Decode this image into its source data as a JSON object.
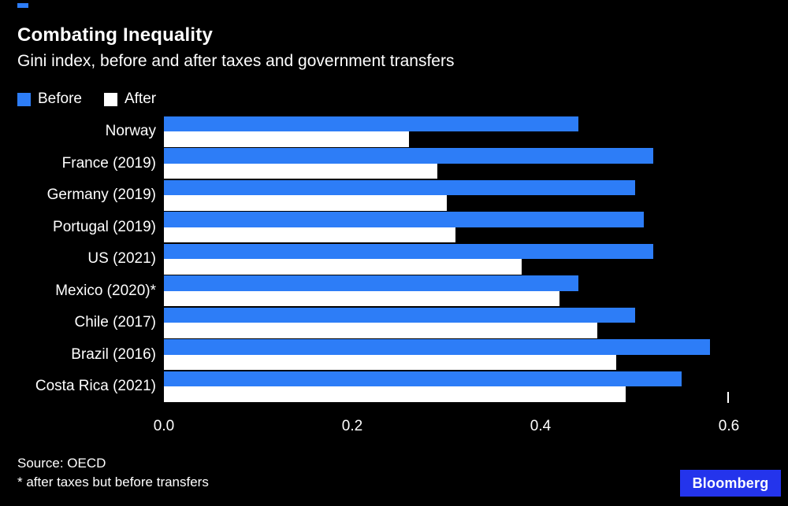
{
  "chart_data": {
    "type": "bar",
    "orientation": "horizontal",
    "title": "Combating Inequality",
    "subtitle": "Gini index, before and after taxes and government transfers",
    "categories": [
      "Norway",
      "France (2019)",
      "Germany (2019)",
      "Portugal (2019)",
      "US (2021)",
      "Mexico (2020)*",
      "Chile (2017)",
      "Brazil (2016)",
      "Costa Rica (2021)"
    ],
    "series": [
      {
        "name": "Before",
        "color": "#2d7df7",
        "values": [
          0.44,
          0.52,
          0.5,
          0.51,
          0.52,
          0.44,
          0.5,
          0.58,
          0.55
        ]
      },
      {
        "name": "After",
        "color": "#ffffff",
        "values": [
          0.26,
          0.29,
          0.3,
          0.31,
          0.38,
          0.42,
          0.46,
          0.48,
          0.49
        ]
      }
    ],
    "xlim": [
      0,
      0.6
    ],
    "x_ticks": [
      "0.0",
      "0.2",
      "0.4",
      "0.6"
    ],
    "legend_position": "top",
    "grid": false
  },
  "footer": {
    "source": "Source: OECD",
    "footnote": "* after taxes but before transfers",
    "brand": "Bloomberg"
  },
  "colors": {
    "background": "#000000",
    "before_bar": "#2d7df7",
    "after_bar": "#ffffff",
    "accent": "#2d7df7",
    "brand_blue": "#2434ec",
    "text": "#ffffff"
  }
}
